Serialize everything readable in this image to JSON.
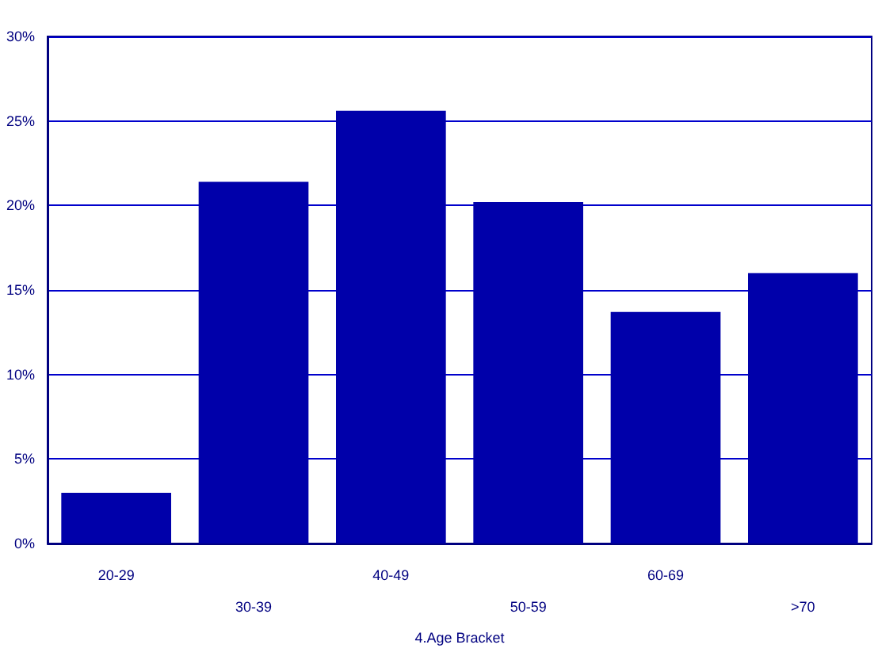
{
  "chart_data": {
    "type": "bar",
    "xlabel": "4.Age Bracket",
    "categories": [
      "20-29",
      "30-39",
      "40-49",
      "50-59",
      "60-69",
      ">70"
    ],
    "values": [
      3.0,
      21.4,
      25.6,
      20.2,
      13.7,
      16.0
    ],
    "color": "#0000aa",
    "ylim": [
      0,
      30
    ],
    "yticks": [
      {
        "value": 0,
        "label": "0%"
      },
      {
        "value": 5,
        "label": "5%"
      },
      {
        "value": 10,
        "label": "10%"
      },
      {
        "value": 15,
        "label": "15%"
      },
      {
        "value": 20,
        "label": "20%"
      },
      {
        "value": 25,
        "label": "25%"
      },
      {
        "value": 30,
        "label": "30%"
      }
    ],
    "grid": "y"
  }
}
